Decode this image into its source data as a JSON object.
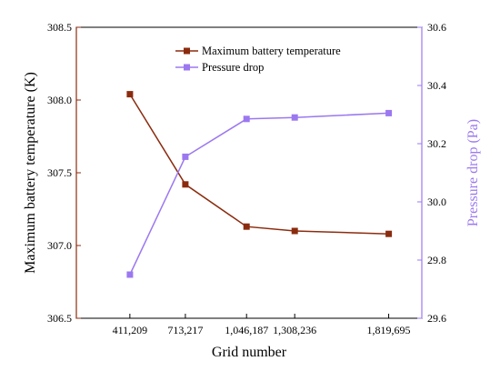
{
  "chart_data": {
    "type": "line",
    "x_categories": [
      "411,209",
      "713,217",
      "1,046,187",
      "1,308,236",
      "1,819,695"
    ],
    "x_values": [
      411209,
      713217,
      1046187,
      1308236,
      1819695
    ],
    "xlabel": "Grid number",
    "ylabel_left": "Maximum battery temperature (K)",
    "ylabel_right": "Pressure drop (Pa)",
    "ylim_left": [
      306.5,
      308.5
    ],
    "yticks_left": [
      "306.5",
      "307.0",
      "307.5",
      "308.0",
      "308.5"
    ],
    "ylim_right": [
      29.6,
      30.6
    ],
    "yticks_right": [
      "29.6",
      "29.8",
      "30.0",
      "30.2",
      "30.4",
      "30.6"
    ],
    "xlim": [
      120000,
      2000000
    ],
    "grid": false,
    "legend_position": "top-center",
    "series": [
      {
        "name": "Maximum battery temperature",
        "axis": "left",
        "marker": "square",
        "color": "#8B2B0E",
        "values": [
          308.04,
          307.42,
          307.13,
          307.1,
          307.08
        ]
      },
      {
        "name": "Pressure drop",
        "axis": "right",
        "marker": "square",
        "color": "#9B78F0",
        "values": [
          29.75,
          30.155,
          30.285,
          30.29,
          30.305
        ]
      }
    ]
  }
}
